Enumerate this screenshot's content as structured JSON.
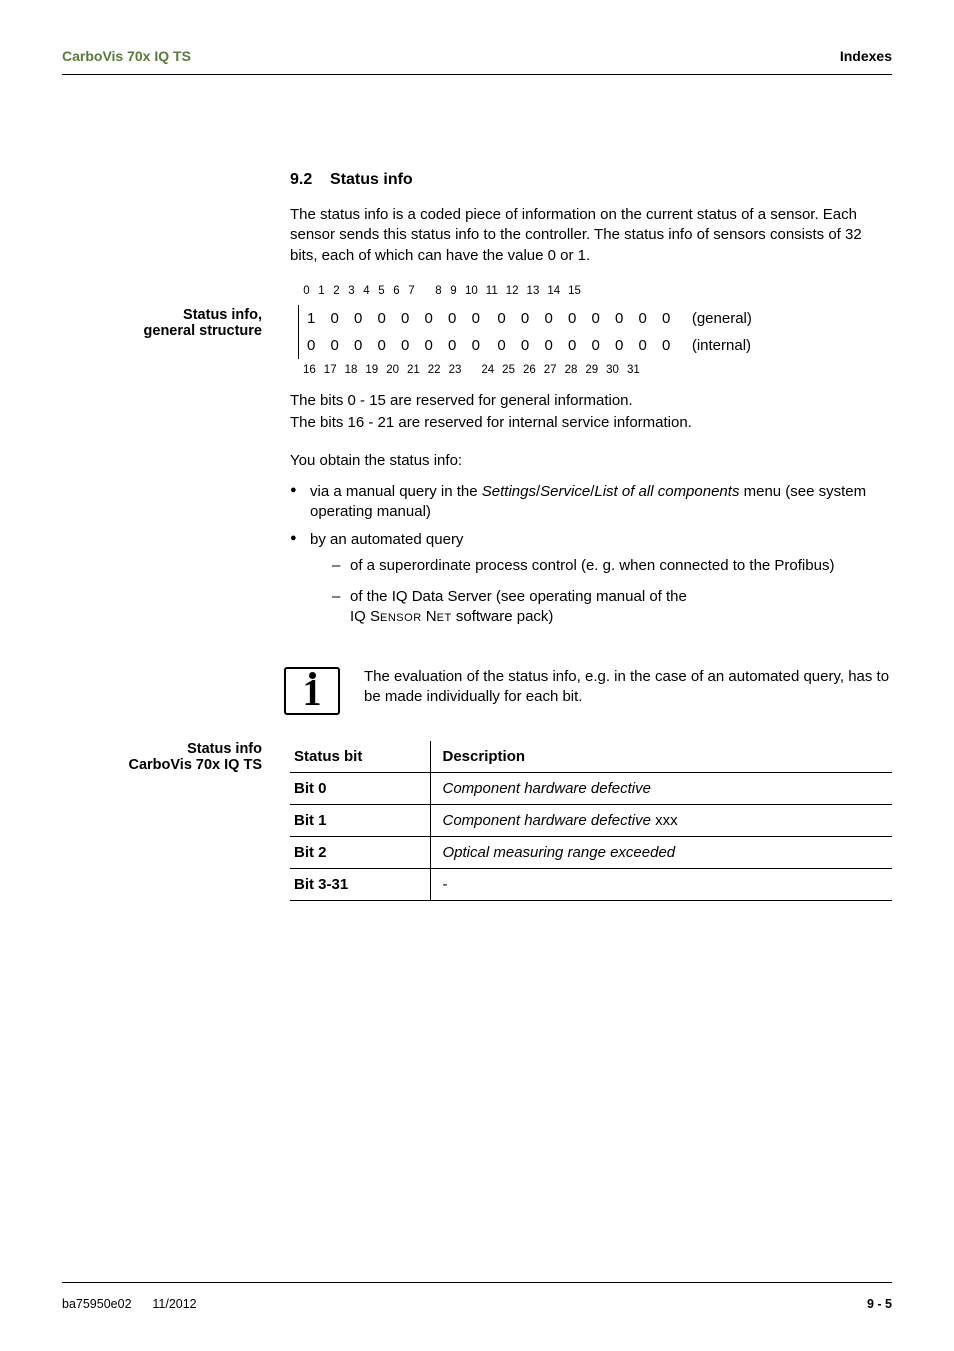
{
  "header": {
    "product": "CarboVis 70x IQ TS",
    "pageLabel": "Indexes"
  },
  "section": {
    "number": "9.2",
    "title": "Status info"
  },
  "intro": "The status info is a coded piece of information on the current status of a sensor. Each sensor sends this status info to the controller. The status info of sensors consists of 32 bits, each of which can have the value 0 or 1.",
  "sideLabels": {
    "structure1": "Status info,",
    "structure2": "general structure",
    "table1": "Status info",
    "table2": "CarboVis 70x IQ TS"
  },
  "bitHeader": {
    "top": [
      "0",
      "1",
      "2",
      "3",
      "4",
      "5",
      "6",
      "7",
      "",
      "8",
      "9",
      "10",
      "11",
      "12",
      "13",
      "14",
      "15"
    ],
    "bottom": [
      "16",
      "17",
      "18",
      "19",
      "20",
      "21",
      "22",
      "23",
      "",
      "24",
      "25",
      "26",
      "27",
      "28",
      "29",
      "30",
      "31"
    ]
  },
  "bitRows": [
    {
      "left": "1 0 0 0 0 0 0 0",
      "right": "0 0 0 0 0 0 0 0",
      "label": "(general)"
    },
    {
      "left": "0 0 0 0 0 0 0 0",
      "right": "0 0 0 0 0 0 0 0",
      "label": "(internal)"
    }
  ],
  "afterBits1": "The bits 0 - 15 are reserved for general information.",
  "afterBits2": "The bits 16 - 21 are reserved for internal service information.",
  "obtain": "You obtain the status info:",
  "bullet1a": "via a manual query in the ",
  "bullet1b": "Settings",
  "bullet1c": "Service",
  "bullet1d": "List of all components",
  "bullet1e": " menu (see system operating manual)",
  "bullet2": "by an automated query",
  "dash1": "of a superordinate process control (e. g. when connected to the Profibus)",
  "dash2a": "of the IQ Data Server (see operating manual of the",
  "dash2b": "IQ S",
  "dash2c": "ensor",
  "dash2d": " N",
  "dash2e": "et",
  "dash2f": " software pack)",
  "note": "The evaluation of the status info, e.g. in the case of an automated query, has to be made individually for each bit.",
  "table": {
    "h1": "Status bit",
    "h2": "Description",
    "rows": [
      {
        "bit": "Bit 0",
        "desc": "Component hardware defective",
        "suffix": ""
      },
      {
        "bit": "Bit 1",
        "desc": "Component hardware defective",
        "suffix": " xxx"
      },
      {
        "bit": "Bit 2",
        "desc": "Optical measuring range exceeded",
        "suffix": ""
      },
      {
        "bit": "Bit 3-31",
        "desc": "",
        "suffix": "-"
      }
    ]
  },
  "footer": {
    "left1": "ba75950e02",
    "left2": "11/2012",
    "right": "9 - 5"
  },
  "colors": {
    "productGreen": "#5a7a3a"
  }
}
